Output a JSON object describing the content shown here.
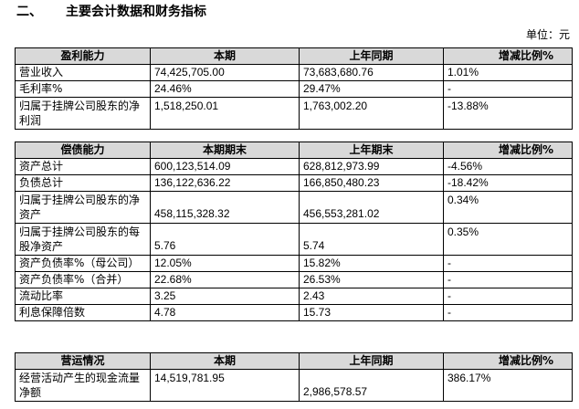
{
  "heading": {
    "number": "二、",
    "title": "主要会计数据和财务指标"
  },
  "unit": "单位：元",
  "profit": {
    "header": [
      "盈利能力",
      "本期",
      "上年同期",
      "增减比例%"
    ],
    "rows": [
      {
        "label": "营业收入",
        "current": "74,425,705.00",
        "prior": "73,683,680.76",
        "change": "1.01%"
      },
      {
        "label": "毛利率%",
        "current": "24.46%",
        "prior": "29.47%",
        "change": "-"
      },
      {
        "label": "归属于挂牌公司股东的净利润",
        "current": "1,518,250.01",
        "prior": "1,763,002.20",
        "change": "-13.88%"
      }
    ]
  },
  "solvency": {
    "header": [
      "偿债能力",
      "本期期末",
      "上年期末",
      "增减比例%"
    ],
    "rows": [
      {
        "label": "资产总计",
        "current": "600,123,514.09",
        "prior": "628,812,973.99",
        "change": "-4.56%"
      },
      {
        "label": "负债总计",
        "current": "136,122,636.22",
        "prior": "166,850,480.23",
        "change": "-18.42%"
      },
      {
        "label": "归属于挂牌公司股东的净资产",
        "current": "458,115,328.32",
        "prior": "456,553,281.02",
        "change": "0.34%"
      },
      {
        "label": "归属于挂牌公司股东的每股净资产",
        "current": "5.76",
        "prior": "5.74",
        "change": "0.35%"
      },
      {
        "label": "资产负债率%（母公司）",
        "current": "12.05%",
        "prior": "15.82%",
        "change": "-"
      },
      {
        "label": "资产负债率%（合并）",
        "current": "22.68%",
        "prior": "26.53%",
        "change": "-"
      },
      {
        "label": "流动比率",
        "current": "3.25",
        "prior": "2.43",
        "change": "-"
      },
      {
        "label": "利息保障倍数",
        "current": "4.78",
        "prior": "15.73",
        "change": "-"
      }
    ]
  },
  "operation": {
    "header": [
      "营运情况",
      "本期",
      "上年同期",
      "增减比例%"
    ],
    "rows": [
      {
        "label": "经营活动产生的现金流量净额",
        "current": "14,519,781.95",
        "prior": "2,986,578.57",
        "change": "386.17%"
      }
    ]
  }
}
